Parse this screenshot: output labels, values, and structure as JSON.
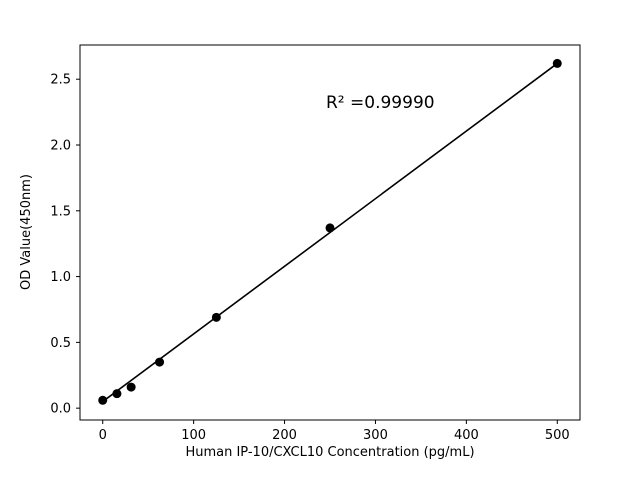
{
  "chart_data": {
    "type": "scatter",
    "title": "",
    "xlabel": "Human IP-10/CXCL10 Concentration (pg/mL)",
    "ylabel": "OD Value(450nm)",
    "annotation": "R² =0.99990",
    "x": [
      0,
      15.6,
      31.25,
      62.5,
      125,
      250,
      500
    ],
    "y": [
      0.06,
      0.11,
      0.16,
      0.35,
      0.69,
      1.37,
      2.62
    ],
    "fit_line": {
      "x": [
        0,
        500
      ],
      "y": [
        0.05,
        2.62
      ]
    },
    "xlim": [
      -25,
      525
    ],
    "ylim": [
      -0.09,
      2.76
    ],
    "xticks": [
      0,
      100,
      200,
      300,
      400,
      500
    ],
    "xtick_labels": [
      "0",
      "100",
      "200",
      "300",
      "400",
      "500"
    ],
    "yticks": [
      0,
      0.5,
      1.0,
      1.5,
      2.0,
      2.5
    ],
    "ytick_labels": [
      "0.0",
      "0.5",
      "1.0",
      "1.5",
      "2.0",
      "2.5"
    ],
    "grid": false,
    "legend": "none",
    "marker_color": "#000000",
    "line_color": "#000000",
    "frame_color": "#000000"
  }
}
